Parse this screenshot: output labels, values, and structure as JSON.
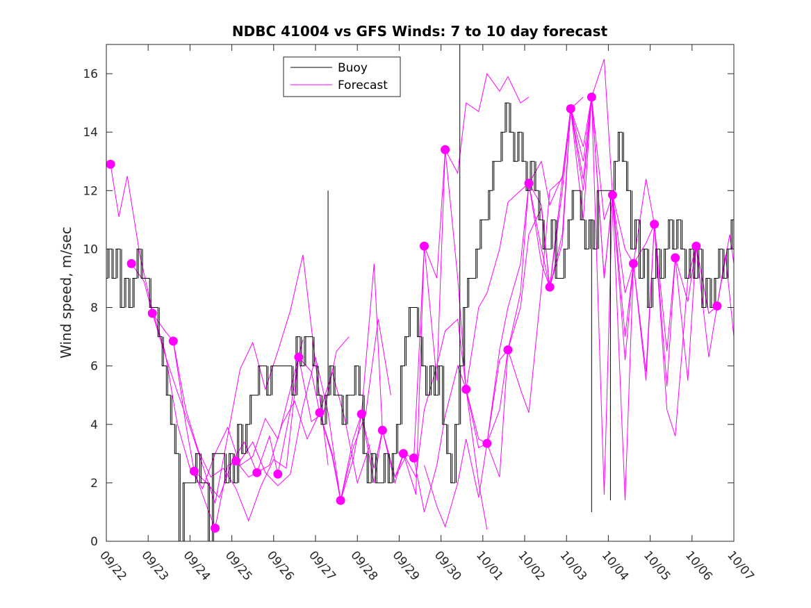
{
  "chart_data": {
    "type": "line",
    "title": "NDBC 41004 vs GFS Winds: 7 to 10 day forecast",
    "xlabel": "",
    "ylabel": "Wind speed, m/sec",
    "xlim": [
      0,
      15
    ],
    "ylim": [
      0,
      17
    ],
    "yticks": [
      0,
      2,
      4,
      6,
      8,
      10,
      12,
      14,
      16
    ],
    "x_tick_labels": [
      "09/22",
      "09/23",
      "09/24",
      "09/25",
      "09/26",
      "09/27",
      "09/28",
      "09/29",
      "09/30",
      "10/01",
      "10/02",
      "10/03",
      "10/04",
      "10/05",
      "10/06",
      "10/07"
    ],
    "legend": [
      {
        "label": "Buoy",
        "color": "#000000"
      },
      {
        "label": "Forecast",
        "color": "#ff00ff"
      }
    ],
    "legend_position": "top-center",
    "colors": {
      "buoy": "#000000",
      "forecast": "#ff00ff",
      "axis": "#262626"
    },
    "buoy": {
      "name": "Buoy",
      "x": [
        0,
        0.1,
        0.2,
        0.3,
        0.4,
        0.5,
        0.6,
        0.7,
        0.8,
        0.9,
        1.0,
        1.1,
        1.2,
        1.3,
        1.4,
        1.5,
        1.6,
        1.7,
        1.8,
        1.9,
        2.0,
        2.1,
        2.2,
        2.3,
        2.4,
        2.5,
        2.6,
        2.7,
        2.8,
        2.9,
        3.0,
        3.1,
        3.2,
        3.3,
        3.4,
        3.5,
        3.6,
        3.7,
        3.8,
        3.9,
        4.0,
        4.1,
        4.2,
        4.3,
        4.4,
        4.5,
        4.6,
        4.7,
        4.8,
        4.9,
        5.0,
        5.1,
        5.2,
        5.3,
        5.4,
        5.5,
        5.6,
        5.7,
        5.8,
        5.9,
        6.0,
        6.1,
        6.2,
        6.3,
        6.4,
        6.5,
        6.6,
        6.7,
        6.8,
        6.9,
        7.0,
        7.1,
        7.2,
        7.3,
        7.4,
        7.5,
        7.6,
        7.7,
        7.8,
        7.9,
        8.0,
        8.1,
        8.2,
        8.3,
        8.4,
        8.5,
        8.6,
        8.7,
        8.8,
        8.9,
        9.0,
        9.1,
        9.2,
        9.3,
        9.4,
        9.5,
        9.6,
        9.7,
        9.8,
        9.9,
        10.0,
        10.1,
        10.2,
        10.3,
        10.4,
        10.5,
        10.6,
        10.7,
        10.8,
        10.9,
        11.0,
        11.1,
        11.2,
        11.3,
        11.4,
        11.5,
        11.6,
        11.7,
        11.8,
        11.9,
        12.0,
        12.1,
        12.2,
        12.3,
        12.4,
        12.5,
        12.6,
        12.7,
        12.8,
        12.9,
        13.0,
        13.1,
        13.2,
        13.3,
        13.4,
        13.5,
        13.6,
        13.7,
        13.8,
        13.9,
        14.0,
        14.1,
        14.2,
        14.3,
        14.4,
        14.5,
        14.6,
        14.7,
        14.8,
        14.9,
        15.0
      ],
      "y": [
        9,
        10,
        9,
        10,
        8,
        9,
        8,
        9,
        10,
        9,
        9,
        8,
        8,
        7,
        6,
        5,
        4,
        3,
        0,
        2,
        2,
        2,
        3,
        2,
        2,
        0,
        3,
        3,
        3,
        2,
        3,
        2,
        4,
        3,
        4,
        5,
        5,
        6,
        6,
        5,
        6,
        6,
        6,
        6,
        6,
        5,
        7,
        6,
        7,
        7,
        6,
        5,
        4,
        5,
        6,
        5,
        5,
        4,
        5,
        5,
        6,
        5,
        3,
        2,
        3,
        2,
        2,
        3,
        2,
        3,
        4,
        6,
        7,
        8,
        8,
        7,
        6,
        5,
        6,
        5,
        6,
        4,
        3,
        2,
        4,
        6,
        8,
        9,
        9,
        10,
        11,
        11,
        12,
        13,
        13,
        14,
        15,
        14,
        13,
        14,
        13,
        12,
        13,
        12,
        11,
        10,
        10,
        11,
        9,
        9,
        10,
        11,
        12,
        12,
        11,
        10,
        11,
        10,
        12,
        12,
        12,
        12,
        13,
        14,
        13,
        12,
        10,
        11,
        9,
        10,
        8,
        9,
        10,
        9,
        10,
        11,
        10,
        11,
        10,
        9,
        10,
        9,
        10,
        8,
        9,
        8,
        9,
        10,
        9,
        10,
        11
      ],
      "spikes": [
        {
          "x": 5.3,
          "y": 12
        },
        {
          "x": 8.45,
          "y": 17
        },
        {
          "x": 11.6,
          "y": 1
        },
        {
          "x": 12.05,
          "y": 1.4
        }
      ]
    },
    "forecast_dots": {
      "x": [
        0.1,
        0.6,
        1.1,
        1.6,
        2.1,
        2.6,
        3.1,
        3.6,
        4.1,
        4.6,
        5.1,
        5.6,
        6.1,
        6.6,
        7.1,
        7.35,
        7.6,
        8.1,
        8.6,
        9.1,
        9.6,
        10.1,
        10.6,
        11.1,
        11.6,
        12.1,
        12.6,
        13.1,
        13.6,
        14.1,
        14.6
      ],
      "y": [
        12.9,
        9.5,
        7.8,
        6.85,
        2.4,
        0.45,
        2.75,
        2.35,
        2.3,
        6.3,
        4.4,
        1.4,
        4.35,
        3.8,
        3.0,
        2.85,
        10.1,
        13.4,
        5.2,
        3.35,
        6.55,
        12.25,
        8.7,
        14.8,
        15.2,
        11.85,
        9.5,
        10.85,
        9.7,
        10.1,
        8.05
      ]
    },
    "series": [
      {
        "name": "Forecast",
        "x": [
          0.1,
          0.3,
          0.5,
          0.8,
          1.1,
          1.4,
          1.7,
          2.0,
          2.3,
          2.6,
          2.9,
          3.2,
          3.5,
          3.8,
          4.1,
          4.4,
          4.7
        ],
        "y": [
          12.9,
          11.1,
          12.5,
          9.8,
          7.9,
          6.5,
          4.0,
          2.5,
          1.8,
          3.0,
          3.9,
          2.6,
          2.9,
          4.2,
          3.5,
          5.2,
          6.9
        ]
      },
      {
        "name": "Forecast",
        "x": [
          0.6,
          0.9,
          1.1,
          1.4,
          1.7,
          2.0,
          2.3,
          2.6,
          2.9,
          3.2,
          3.5,
          3.8,
          4.1,
          4.4,
          4.7,
          5.0,
          5.3
        ],
        "y": [
          9.5,
          8.9,
          7.8,
          6.4,
          5.1,
          3.9,
          2.6,
          1.3,
          3.6,
          5.9,
          6.8,
          5.2,
          6.5,
          7.9,
          9.8,
          6.1,
          2.6
        ]
      },
      {
        "name": "Forecast",
        "x": [
          1.1,
          1.4,
          1.6,
          1.9,
          2.2,
          2.5,
          2.8,
          3.1,
          3.4,
          3.7,
          4.0,
          4.3,
          4.6,
          4.9,
          5.2,
          5.5,
          5.8
        ],
        "y": [
          7.8,
          7.2,
          6.85,
          4.5,
          3.1,
          2.2,
          2.5,
          1.8,
          0.7,
          1.9,
          2.8,
          2.5,
          6.3,
          4.1,
          4.4,
          6.5,
          7.0
        ]
      },
      {
        "name": "Forecast",
        "x": [
          1.6,
          1.9,
          2.1,
          2.4,
          2.7,
          3.0,
          3.3,
          3.6,
          3.9,
          4.2,
          4.5,
          4.8,
          5.1,
          5.4,
          5.7,
          6.0,
          6.3
        ],
        "y": [
          6.85,
          4.0,
          2.4,
          2.0,
          1.5,
          2.7,
          3.4,
          2.35,
          2.6,
          4.0,
          4.8,
          3.5,
          4.4,
          5.8,
          4.2,
          2.0,
          3.3
        ]
      },
      {
        "name": "Forecast",
        "x": [
          2.1,
          2.4,
          2.6,
          2.9,
          3.2,
          3.5,
          3.8,
          4.1,
          4.4,
          4.7,
          5.0,
          5.3,
          5.6,
          5.9,
          6.2,
          6.5,
          6.8
        ],
        "y": [
          2.4,
          1.2,
          0.45,
          2.6,
          2.75,
          3.4,
          2.35,
          1.9,
          2.3,
          4.6,
          6.3,
          4.4,
          1.4,
          3.2,
          4.35,
          7.6,
          5.0
        ]
      },
      {
        "name": "Forecast",
        "x": [
          3.1,
          3.4,
          3.6,
          3.9,
          4.1,
          4.4,
          4.6,
          4.9,
          5.1,
          5.4,
          5.6,
          5.9,
          6.1,
          6.4,
          6.6,
          6.9,
          7.2
        ],
        "y": [
          2.75,
          2.2,
          2.35,
          3.6,
          2.3,
          4.5,
          6.3,
          5.8,
          4.4,
          2.9,
          1.4,
          2.8,
          4.35,
          2.0,
          3.8,
          2.2,
          3.0
        ]
      },
      {
        "name": "Forecast",
        "x": [
          5.1,
          5.4,
          5.6,
          5.9,
          6.1,
          6.4,
          6.6,
          6.9,
          7.1,
          7.4,
          7.6,
          7.9,
          8.1,
          8.4,
          8.6,
          8.9,
          9.1
        ],
        "y": [
          4.4,
          3.0,
          1.4,
          3.5,
          4.35,
          9.5,
          3.8,
          2.0,
          3.0,
          1.6,
          10.1,
          5.5,
          13.4,
          9.0,
          5.2,
          2.0,
          0.4
        ]
      },
      {
        "name": "Forecast",
        "x": [
          6.1,
          6.4,
          6.6,
          6.9,
          7.1,
          7.35,
          7.6,
          7.9,
          8.1,
          8.4,
          8.6,
          8.9,
          9.1,
          9.4,
          9.6,
          9.9,
          10.1
        ],
        "y": [
          4.35,
          2.5,
          3.8,
          2.2,
          3.0,
          2.85,
          10.1,
          9.0,
          13.4,
          12.6,
          15.0,
          14.7,
          16.0,
          15.4,
          15.9,
          15.0,
          15.2
        ]
      },
      {
        "name": "Forecast",
        "x": [
          7.1,
          7.4,
          7.6,
          7.9,
          8.1,
          8.4,
          8.6,
          8.9,
          9.1,
          9.4,
          9.6,
          9.9,
          10.1,
          10.4,
          10.6,
          10.9,
          11.1
        ],
        "y": [
          3.0,
          2.2,
          4.5,
          6.0,
          7.2,
          7.6,
          5.2,
          8.0,
          8.5,
          10.0,
          11.6,
          12.0,
          12.25,
          13.0,
          11.5,
          12.5,
          14.8
        ]
      },
      {
        "name": "Forecast",
        "x": [
          7.35,
          7.6,
          7.9,
          8.1,
          8.4,
          8.6,
          8.9,
          9.1,
          9.4,
          9.6,
          9.9,
          10.1,
          10.4,
          10.6,
          10.9,
          11.1,
          11.4
        ],
        "y": [
          2.85,
          1.0,
          2.6,
          4.3,
          6.0,
          5.2,
          3.2,
          3.35,
          6.2,
          6.55,
          8.0,
          10.5,
          11.4,
          8.7,
          12.4,
          14.8,
          15.2
        ]
      },
      {
        "name": "Forecast",
        "x": [
          7.6,
          7.9,
          8.1,
          8.4,
          8.6,
          8.9,
          9.1,
          9.4,
          9.6,
          9.9,
          10.1,
          10.4,
          10.6,
          10.9,
          11.1,
          11.4,
          11.6
        ],
        "y": [
          2.6,
          1.2,
          0.5,
          2.0,
          3.5,
          1.5,
          3.35,
          2.2,
          6.55,
          5.2,
          4.4,
          8.7,
          12.0,
          12.4,
          14.8,
          13.5,
          15.2
        ]
      },
      {
        "name": "Forecast",
        "x": [
          8.6,
          8.9,
          9.1,
          9.4,
          9.6,
          9.9,
          10.1,
          10.4,
          10.6,
          10.9,
          11.1,
          11.4,
          11.6,
          11.9,
          12.1,
          12.4,
          12.6
        ],
        "y": [
          5.2,
          3.5,
          3.35,
          6.55,
          8.0,
          9.5,
          12.25,
          11.5,
          8.7,
          10.2,
          14.8,
          13.0,
          15.2,
          16.5,
          11.85,
          10.0,
          9.5
        ]
      },
      {
        "name": "Forecast",
        "x": [
          9.1,
          9.4,
          9.6,
          9.9,
          10.1,
          10.4,
          10.6,
          10.9,
          11.1,
          11.4,
          11.6,
          11.9,
          12.1,
          12.4,
          12.6,
          12.9,
          13.1
        ],
        "y": [
          3.35,
          4.5,
          6.55,
          8.5,
          12.25,
          10.0,
          8.7,
          12.0,
          14.8,
          11.0,
          15.2,
          9.0,
          11.85,
          7.0,
          9.5,
          12.4,
          10.85
        ]
      },
      {
        "name": "Forecast",
        "x": [
          10.1,
          10.4,
          10.6,
          10.9,
          11.1,
          11.4,
          11.6,
          11.9,
          12.1,
          12.4,
          12.6,
          12.9,
          13.1,
          13.4,
          13.6,
          13.9,
          14.1
        ],
        "y": [
          12.25,
          9.5,
          8.7,
          10.5,
          14.8,
          12.4,
          15.2,
          11.0,
          11.85,
          8.5,
          9.5,
          10.2,
          10.85,
          5.3,
          9.7,
          5.5,
          10.1
        ]
      },
      {
        "name": "Forecast",
        "x": [
          11.1,
          11.4,
          11.6,
          11.9,
          12.1,
          12.4,
          12.6,
          12.9,
          13.1,
          13.4,
          13.6,
          13.9,
          14.1,
          14.4,
          14.6,
          14.9,
          15.0
        ],
        "y": [
          14.8,
          12.0,
          15.2,
          9.0,
          11.85,
          6.2,
          9.5,
          5.5,
          10.85,
          6.5,
          9.7,
          8.2,
          10.1,
          7.8,
          8.05,
          10.5,
          9.5
        ]
      },
      {
        "name": "Forecast",
        "x": [
          11.6,
          11.9,
          12.1,
          12.4,
          12.6,
          12.9,
          13.1,
          13.4,
          13.6,
          13.9,
          14.1,
          14.4,
          14.6,
          14.8,
          15.0
        ],
        "y": [
          15.2,
          1.6,
          11.85,
          1.4,
          9.5,
          5.8,
          10.85,
          4.5,
          3.6,
          9.0,
          10.1,
          6.3,
          8.05,
          9.8,
          7.0
        ]
      }
    ]
  }
}
